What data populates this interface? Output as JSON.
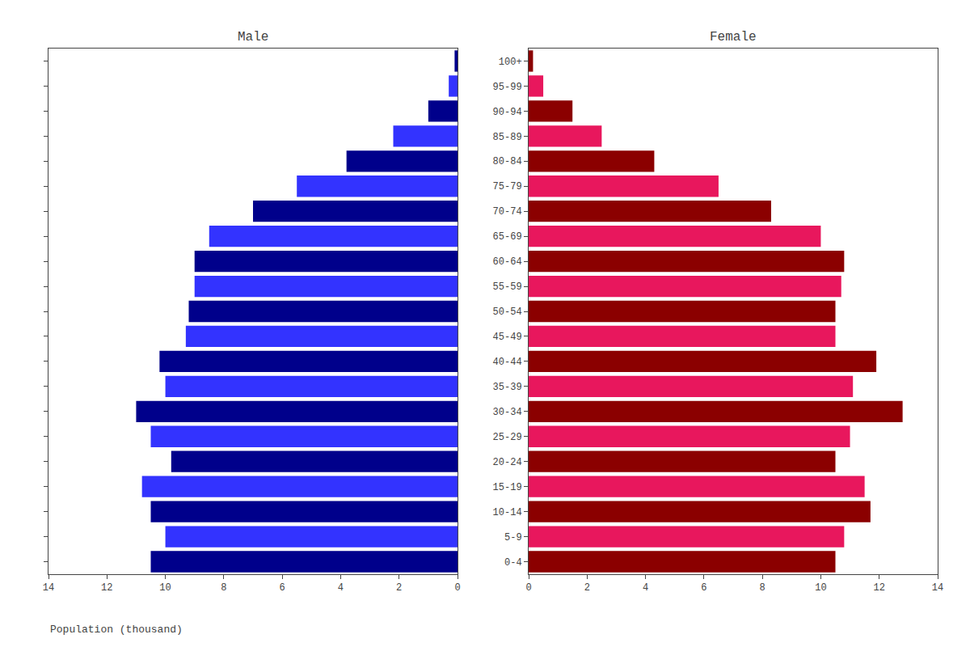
{
  "chart_data": {
    "type": "bar",
    "orientation": "horizontal",
    "xlabel": "Population (thousand)",
    "categories": [
      "0-4",
      "5-9",
      "10-14",
      "15-19",
      "20-24",
      "25-29",
      "30-34",
      "35-39",
      "40-44",
      "45-49",
      "50-54",
      "55-59",
      "60-64",
      "65-69",
      "70-74",
      "75-79",
      "80-84",
      "85-89",
      "90-94",
      "95-99",
      "100+"
    ],
    "series": [
      {
        "name": "Male",
        "values": [
          10.5,
          10.0,
          10.5,
          10.8,
          9.8,
          10.5,
          11.0,
          10.0,
          10.2,
          9.3,
          9.2,
          9.0,
          9.0,
          8.5,
          7.0,
          5.5,
          3.8,
          2.2,
          1.0,
          0.3,
          0.1
        ],
        "colors": [
          "#00008B",
          "#3333FF",
          "#00008B",
          "#3333FF",
          "#00008B",
          "#3333FF",
          "#00008B",
          "#3333FF",
          "#00008B",
          "#3333FF",
          "#00008B",
          "#3333FF",
          "#00008B",
          "#3333FF",
          "#00008B",
          "#3333FF",
          "#00008B",
          "#3333FF",
          "#00008B",
          "#3333FF",
          "#00008B"
        ]
      },
      {
        "name": "Female",
        "values": [
          10.5,
          10.8,
          11.7,
          11.5,
          10.5,
          11.0,
          12.8,
          11.1,
          11.9,
          10.5,
          10.5,
          10.7,
          10.8,
          10.0,
          8.3,
          6.5,
          4.3,
          2.5,
          1.5,
          0.5,
          0.15
        ],
        "colors": [
          "#8B0000",
          "#E8175D",
          "#8B0000",
          "#E8175D",
          "#8B0000",
          "#E8175D",
          "#8B0000",
          "#E8175D",
          "#8B0000",
          "#E8175D",
          "#8B0000",
          "#E8175D",
          "#8B0000",
          "#E8175D",
          "#8B0000",
          "#E8175D",
          "#8B0000",
          "#E8175D",
          "#8B0000",
          "#E8175D",
          "#8B0000"
        ]
      }
    ],
    "xlim": [
      0,
      14
    ],
    "xticks": [
      0,
      2,
      4,
      6,
      8,
      10,
      12,
      14
    ],
    "grid": false
  }
}
